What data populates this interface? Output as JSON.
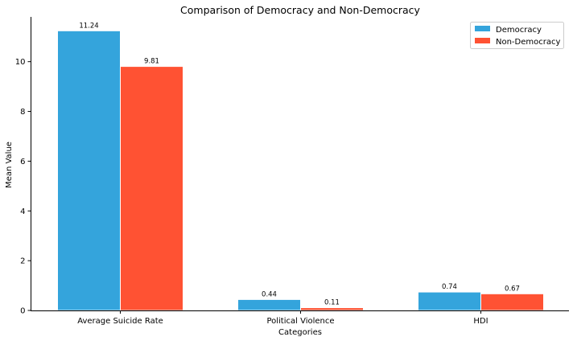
{
  "chart_data": {
    "type": "bar",
    "title": "Comparison of Democracy and Non-Democracy",
    "xlabel": "Categories",
    "ylabel": "Mean Value",
    "categories": [
      "Average Suicide Rate",
      "Political Violence",
      "HDI"
    ],
    "series": [
      {
        "name": "Democracy",
        "values": [
          11.24,
          0.44,
          0.74
        ],
        "labels": [
          "11.24",
          "0.44",
          "0.74"
        ],
        "color": "#34a4dc"
      },
      {
        "name": "Non-Democracy",
        "values": [
          9.81,
          0.11,
          0.67
        ],
        "labels": [
          "9.81",
          "0.11",
          "0.67"
        ],
        "color": "#ff5233"
      }
    ],
    "ylim": [
      0,
      11.8
    ],
    "yticks": [
      0,
      2,
      4,
      6,
      8,
      10
    ],
    "ytick_labels": [
      "0",
      "2",
      "4",
      "6",
      "8",
      "10"
    ],
    "grid": false,
    "legend_position": "top-right"
  }
}
